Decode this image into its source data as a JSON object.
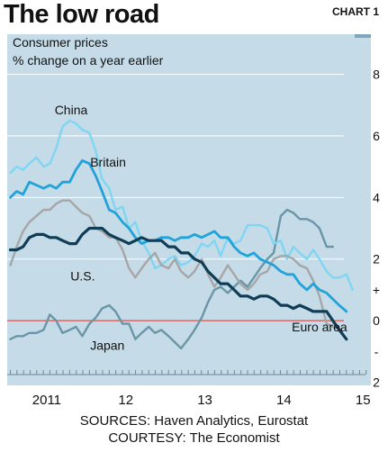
{
  "header": {
    "title": "The low road",
    "chart_label": "CHART 1"
  },
  "footer": {
    "sources": "SOURCES: Haven Analytics, Eurostat",
    "courtesy": "COURTESY: The Economist"
  },
  "colors": {
    "panel_bg": "#c5dbe8",
    "grid": "#ffffff",
    "zero_line": "#d9534f",
    "china": "#7fd6f2",
    "britain": "#1fa3d9",
    "us": "#a6a6a6",
    "euro_area": "#0f3d56",
    "japan": "#6a95a6"
  },
  "chart_data": {
    "type": "line",
    "subtitle_lines": [
      "Consumer prices",
      "% change on a year earlier"
    ],
    "xlabel": "",
    "ylabel": "",
    "x_ticks": [
      {
        "label": "2011",
        "x": 2011.0
      },
      {
        "label": "12",
        "x": 2012.0
      },
      {
        "label": "13",
        "x": 2013.0
      },
      {
        "label": "14",
        "x": 2014.0
      },
      {
        "label": "15",
        "x": 2015.0
      }
    ],
    "y_ticks": [
      {
        "label": "8",
        "y": 8
      },
      {
        "label": "6",
        "y": 6
      },
      {
        "label": "4",
        "y": 4
      },
      {
        "label": "2",
        "y": 2
      },
      {
        "label": "+",
        "y": 1
      },
      {
        "label": "0",
        "y": 0
      },
      {
        "label": "-",
        "y": -1
      },
      {
        "label": "2",
        "y": -2
      }
    ],
    "ylim": [
      -2.1,
      9.3
    ],
    "xlim": [
      2010.5,
      2015.1
    ],
    "grid": true,
    "zero_line": 0,
    "series": [
      {
        "name": "Japan",
        "color_key": "japan",
        "width": 2.4,
        "points": [
          [
            2010.54,
            -0.6
          ],
          [
            2010.62,
            -0.5
          ],
          [
            2010.7,
            -0.5
          ],
          [
            2010.78,
            -0.4
          ],
          [
            2010.87,
            -0.4
          ],
          [
            2010.96,
            -0.3
          ],
          [
            2011.04,
            0.2
          ],
          [
            2011.12,
            0.0
          ],
          [
            2011.2,
            -0.4
          ],
          [
            2011.29,
            -0.3
          ],
          [
            2011.37,
            -0.2
          ],
          [
            2011.45,
            -0.5
          ],
          [
            2011.54,
            -0.1
          ],
          [
            2011.62,
            0.1
          ],
          [
            2011.7,
            0.4
          ],
          [
            2011.79,
            0.5
          ],
          [
            2011.87,
            0.3
          ],
          [
            2011.96,
            -0.1
          ],
          [
            2012.04,
            -0.1
          ],
          [
            2012.12,
            -0.6
          ],
          [
            2012.2,
            -0.4
          ],
          [
            2012.29,
            -0.2
          ],
          [
            2012.37,
            -0.4
          ],
          [
            2012.45,
            -0.3
          ],
          [
            2012.54,
            -0.5
          ],
          [
            2012.62,
            -0.7
          ],
          [
            2012.7,
            -0.9
          ],
          [
            2012.79,
            -0.6
          ],
          [
            2012.87,
            -0.3
          ],
          [
            2012.96,
            0.1
          ],
          [
            2013.04,
            0.6
          ],
          [
            2013.12,
            1.0
          ],
          [
            2013.2,
            1.1
          ],
          [
            2013.29,
            0.9
          ],
          [
            2013.37,
            1.1
          ],
          [
            2013.45,
            1.3
          ],
          [
            2013.54,
            1.1
          ],
          [
            2013.62,
            1.4
          ],
          [
            2013.7,
            1.7
          ],
          [
            2013.79,
            2.0
          ],
          [
            2013.87,
            2.2
          ],
          [
            2013.96,
            3.4
          ],
          [
            2014.04,
            3.6
          ],
          [
            2014.12,
            3.5
          ],
          [
            2014.2,
            3.3
          ],
          [
            2014.29,
            3.3
          ],
          [
            2014.37,
            3.2
          ],
          [
            2014.45,
            3.0
          ],
          [
            2014.54,
            2.4
          ],
          [
            2014.62,
            2.4
          ]
        ]
      },
      {
        "name": "China",
        "color_key": "china",
        "width": 2.4,
        "points": [
          [
            2010.54,
            4.8
          ],
          [
            2010.62,
            5.0
          ],
          [
            2010.7,
            4.9
          ],
          [
            2010.78,
            5.1
          ],
          [
            2010.87,
            5.3
          ],
          [
            2010.96,
            5.0
          ],
          [
            2011.04,
            5.1
          ],
          [
            2011.12,
            5.6
          ],
          [
            2011.2,
            6.3
          ],
          [
            2011.29,
            6.5
          ],
          [
            2011.37,
            6.4
          ],
          [
            2011.45,
            6.2
          ],
          [
            2011.54,
            6.1
          ],
          [
            2011.62,
            5.5
          ],
          [
            2011.7,
            4.6
          ],
          [
            2011.79,
            4.3
          ],
          [
            2011.87,
            3.6
          ],
          [
            2011.96,
            3.7
          ],
          [
            2012.04,
            3.0
          ],
          [
            2012.12,
            3.2
          ],
          [
            2012.2,
            2.6
          ],
          [
            2012.29,
            2.2
          ],
          [
            2012.37,
            1.7
          ],
          [
            2012.45,
            1.8
          ],
          [
            2012.54,
            2.0
          ],
          [
            2012.62,
            2.1
          ],
          [
            2012.7,
            1.8
          ],
          [
            2012.79,
            1.9
          ],
          [
            2012.87,
            2.1
          ],
          [
            2012.96,
            2.5
          ],
          [
            2013.04,
            2.4
          ],
          [
            2013.12,
            2.6
          ],
          [
            2013.2,
            2.1
          ],
          [
            2013.29,
            2.7
          ],
          [
            2013.37,
            2.5
          ],
          [
            2013.45,
            2.6
          ],
          [
            2013.54,
            3.1
          ],
          [
            2013.62,
            3.1
          ],
          [
            2013.7,
            3.1
          ],
          [
            2013.79,
            3.0
          ],
          [
            2013.87,
            2.5
          ],
          [
            2013.96,
            2.6
          ],
          [
            2014.04,
            2.0
          ],
          [
            2014.12,
            2.4
          ],
          [
            2014.2,
            2.2
          ],
          [
            2014.29,
            2.0
          ],
          [
            2014.37,
            2.3
          ],
          [
            2014.45,
            2.0
          ],
          [
            2014.54,
            1.6
          ],
          [
            2014.62,
            1.4
          ],
          [
            2014.7,
            1.4
          ],
          [
            2014.79,
            1.5
          ],
          [
            2014.87,
            1.0
          ]
        ]
      },
      {
        "name": "U.S.",
        "color_key": "us",
        "width": 2.4,
        "points": [
          [
            2010.54,
            1.8
          ],
          [
            2010.62,
            2.4
          ],
          [
            2010.7,
            2.9
          ],
          [
            2010.78,
            3.2
          ],
          [
            2010.87,
            3.4
          ],
          [
            2010.96,
            3.6
          ],
          [
            2011.04,
            3.6
          ],
          [
            2011.12,
            3.8
          ],
          [
            2011.2,
            3.9
          ],
          [
            2011.29,
            3.9
          ],
          [
            2011.37,
            3.7
          ],
          [
            2011.45,
            3.5
          ],
          [
            2011.54,
            3.4
          ],
          [
            2011.62,
            3.0
          ],
          [
            2011.7,
            2.9
          ],
          [
            2011.79,
            2.7
          ],
          [
            2011.87,
            2.7
          ],
          [
            2011.96,
            2.3
          ],
          [
            2012.04,
            1.7
          ],
          [
            2012.12,
            1.4
          ],
          [
            2012.2,
            1.7
          ],
          [
            2012.29,
            2.0
          ],
          [
            2012.37,
            2.2
          ],
          [
            2012.45,
            1.8
          ],
          [
            2012.54,
            1.7
          ],
          [
            2012.62,
            2.0
          ],
          [
            2012.7,
            1.6
          ],
          [
            2012.79,
            1.4
          ],
          [
            2012.87,
            1.6
          ],
          [
            2012.96,
            2.0
          ],
          [
            2013.04,
            1.5
          ],
          [
            2013.12,
            1.1
          ],
          [
            2013.2,
            1.4
          ],
          [
            2013.29,
            1.8
          ],
          [
            2013.37,
            1.5
          ],
          [
            2013.45,
            1.2
          ],
          [
            2013.54,
            1.0
          ],
          [
            2013.62,
            1.2
          ],
          [
            2013.7,
            1.5
          ],
          [
            2013.79,
            1.6
          ],
          [
            2013.87,
            2.0
          ],
          [
            2013.96,
            2.1
          ],
          [
            2014.04,
            2.1
          ],
          [
            2014.12,
            2.0
          ],
          [
            2014.2,
            1.8
          ],
          [
            2014.29,
            1.7
          ],
          [
            2014.37,
            1.3
          ],
          [
            2014.45,
            0.8
          ],
          [
            2014.54,
            -0.1
          ],
          [
            2014.62,
            -0.2
          ]
        ]
      },
      {
        "name": "Britain",
        "color_key": "britain",
        "width": 2.8,
        "points": [
          [
            2010.54,
            4.0
          ],
          [
            2010.62,
            4.2
          ],
          [
            2010.7,
            4.1
          ],
          [
            2010.78,
            4.5
          ],
          [
            2010.87,
            4.4
          ],
          [
            2010.96,
            4.3
          ],
          [
            2011.04,
            4.4
          ],
          [
            2011.12,
            4.3
          ],
          [
            2011.2,
            4.5
          ],
          [
            2011.29,
            4.5
          ],
          [
            2011.37,
            4.9
          ],
          [
            2011.45,
            5.2
          ],
          [
            2011.54,
            5.1
          ],
          [
            2011.62,
            4.7
          ],
          [
            2011.7,
            4.2
          ],
          [
            2011.79,
            3.6
          ],
          [
            2011.87,
            3.5
          ],
          [
            2011.96,
            3.2
          ],
          [
            2012.04,
            3.0
          ],
          [
            2012.12,
            2.7
          ],
          [
            2012.2,
            2.5
          ],
          [
            2012.29,
            2.6
          ],
          [
            2012.37,
            2.6
          ],
          [
            2012.45,
            2.7
          ],
          [
            2012.54,
            2.7
          ],
          [
            2012.62,
            2.6
          ],
          [
            2012.7,
            2.7
          ],
          [
            2012.79,
            2.7
          ],
          [
            2012.87,
            2.8
          ],
          [
            2012.96,
            2.7
          ],
          [
            2013.04,
            2.8
          ],
          [
            2013.12,
            2.9
          ],
          [
            2013.2,
            2.7
          ],
          [
            2013.29,
            2.7
          ],
          [
            2013.37,
            2.4
          ],
          [
            2013.45,
            2.2
          ],
          [
            2013.54,
            2.1
          ],
          [
            2013.62,
            2.2
          ],
          [
            2013.7,
            2.0
          ],
          [
            2013.79,
            1.9
          ],
          [
            2013.87,
            1.8
          ],
          [
            2013.96,
            1.6
          ],
          [
            2014.04,
            1.5
          ],
          [
            2014.12,
            1.5
          ],
          [
            2014.2,
            1.2
          ],
          [
            2014.29,
            1.0
          ],
          [
            2014.37,
            1.2
          ],
          [
            2014.45,
            1.0
          ],
          [
            2014.54,
            0.9
          ],
          [
            2014.62,
            0.7
          ],
          [
            2014.7,
            0.5
          ],
          [
            2014.79,
            0.3
          ]
        ]
      },
      {
        "name": "Euro area",
        "color_key": "euro_area",
        "width": 3.2,
        "points": [
          [
            2010.54,
            2.3
          ],
          [
            2010.62,
            2.3
          ],
          [
            2010.7,
            2.4
          ],
          [
            2010.78,
            2.7
          ],
          [
            2010.87,
            2.8
          ],
          [
            2010.96,
            2.8
          ],
          [
            2011.04,
            2.7
          ],
          [
            2011.12,
            2.7
          ],
          [
            2011.2,
            2.6
          ],
          [
            2011.29,
            2.5
          ],
          [
            2011.37,
            2.5
          ],
          [
            2011.45,
            2.8
          ],
          [
            2011.54,
            3.0
          ],
          [
            2011.62,
            3.0
          ],
          [
            2011.7,
            3.0
          ],
          [
            2011.79,
            2.8
          ],
          [
            2011.87,
            2.7
          ],
          [
            2011.96,
            2.6
          ],
          [
            2012.04,
            2.5
          ],
          [
            2012.12,
            2.6
          ],
          [
            2012.2,
            2.7
          ],
          [
            2012.29,
            2.6
          ],
          [
            2012.37,
            2.6
          ],
          [
            2012.45,
            2.6
          ],
          [
            2012.54,
            2.4
          ],
          [
            2012.62,
            2.4
          ],
          [
            2012.7,
            2.2
          ],
          [
            2012.79,
            2.2
          ],
          [
            2012.87,
            2.0
          ],
          [
            2012.96,
            1.9
          ],
          [
            2013.04,
            1.6
          ],
          [
            2013.12,
            1.4
          ],
          [
            2013.2,
            1.2
          ],
          [
            2013.29,
            1.2
          ],
          [
            2013.37,
            1.0
          ],
          [
            2013.45,
            0.8
          ],
          [
            2013.54,
            0.8
          ],
          [
            2013.62,
            0.7
          ],
          [
            2013.7,
            0.8
          ],
          [
            2013.79,
            0.8
          ],
          [
            2013.87,
            0.7
          ],
          [
            2013.96,
            0.5
          ],
          [
            2014.04,
            0.5
          ],
          [
            2014.12,
            0.4
          ],
          [
            2014.2,
            0.5
          ],
          [
            2014.29,
            0.4
          ],
          [
            2014.37,
            0.3
          ],
          [
            2014.45,
            0.3
          ],
          [
            2014.54,
            0.3
          ],
          [
            2014.62,
            0.0
          ],
          [
            2014.7,
            -0.3
          ],
          [
            2014.79,
            -0.6
          ]
        ]
      }
    ],
    "annotations": [
      {
        "text": "China",
        "series": "China",
        "x": 2011.1,
        "y": 6.7
      },
      {
        "text": "Britain",
        "series": "Britain",
        "x": 2011.55,
        "y": 5.0
      },
      {
        "text": "U.S.",
        "series": "U.S.",
        "x": 2011.3,
        "y": 1.3
      },
      {
        "text": "Euro area",
        "series": "Euro area",
        "x": 2014.1,
        "y": -0.35
      },
      {
        "text": "Japan",
        "series": "Japan",
        "x": 2011.55,
        "y": -0.95
      }
    ]
  }
}
